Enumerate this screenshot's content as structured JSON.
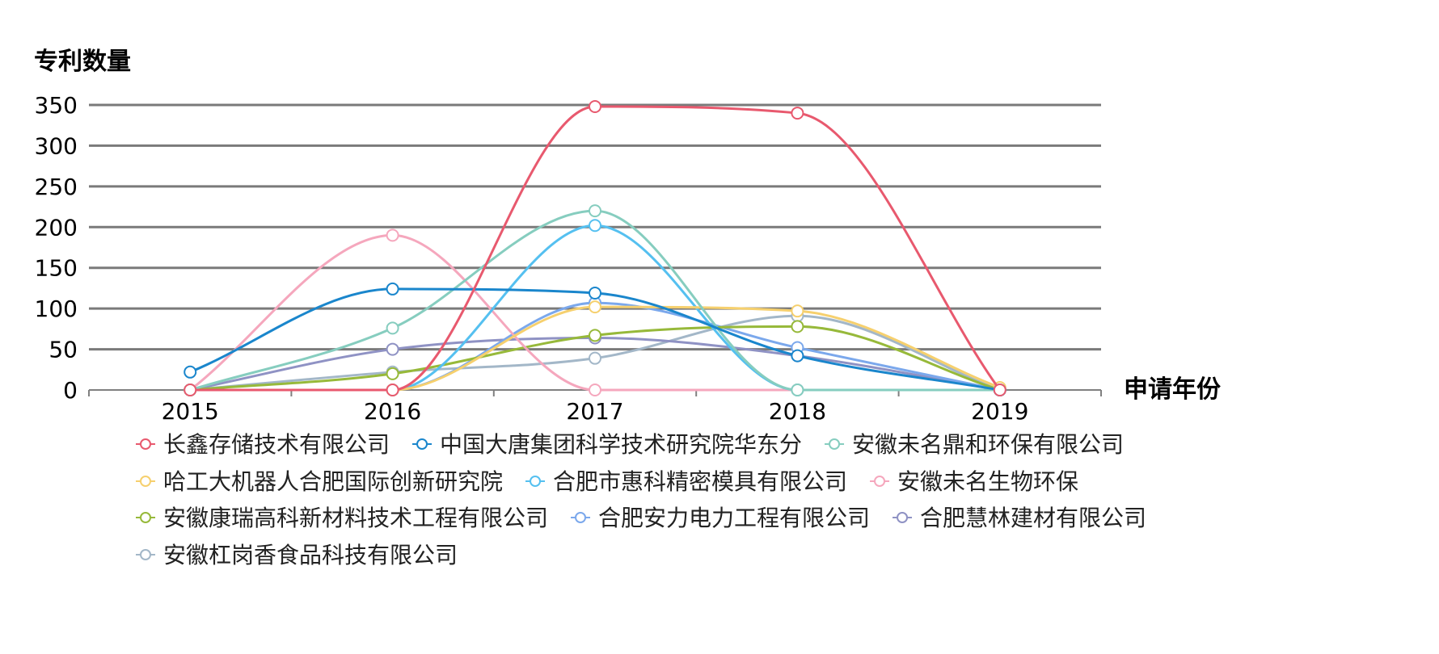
{
  "chart_data": {
    "type": "line",
    "title": "",
    "ylabel": "专利数量",
    "xlabel": "申请年份",
    "x": [
      "2015",
      "2016",
      "2017",
      "2018",
      "2019"
    ],
    "ylim": [
      0,
      350
    ],
    "yticks": [
      0,
      50,
      100,
      150,
      200,
      250,
      300,
      350
    ],
    "grid": true,
    "smooth": true,
    "legend_position": "bottom",
    "series": [
      {
        "name": "长鑫存储技术有限公司",
        "color": "#e8596e",
        "values": [
          0,
          0,
          348,
          340,
          0
        ]
      },
      {
        "name": "中国大唐集团科学技术研究院华东分",
        "color": "#1a86cc",
        "values": [
          22,
          124,
          119,
          42,
          0
        ]
      },
      {
        "name": "安徽未名鼎和环保有限公司",
        "color": "#86cdbf",
        "values": [
          0,
          76,
          220,
          0,
          0
        ]
      },
      {
        "name": "哈工大机器人合肥国际创新研究院",
        "color": "#f6d06e",
        "values": [
          0,
          0,
          102,
          97,
          3
        ]
      },
      {
        "name": "合肥市惠科精密模具有限公司",
        "color": "#55c0f0",
        "values": [
          0,
          0,
          202,
          0,
          0
        ]
      },
      {
        "name": "安徽未名生物环保",
        "color": "#f5a7bd",
        "values": [
          0,
          190,
          0,
          0,
          0
        ]
      },
      {
        "name": "安徽康瑞高科新材料技术工程有限公司",
        "color": "#97b93a",
        "values": [
          0,
          20,
          67,
          78,
          0
        ]
      },
      {
        "name": "合肥安力电力工程有限公司",
        "color": "#7ba8ec",
        "values": [
          0,
          0,
          107,
          52,
          0
        ]
      },
      {
        "name": "合肥慧林建材有限公司",
        "color": "#8f92c4",
        "values": [
          0,
          50,
          64,
          42,
          0
        ]
      },
      {
        "name": "安徽杠岗香食品科技有限公司",
        "color": "#a3b7c8",
        "values": [
          0,
          22,
          39,
          91,
          0
        ]
      }
    ]
  }
}
